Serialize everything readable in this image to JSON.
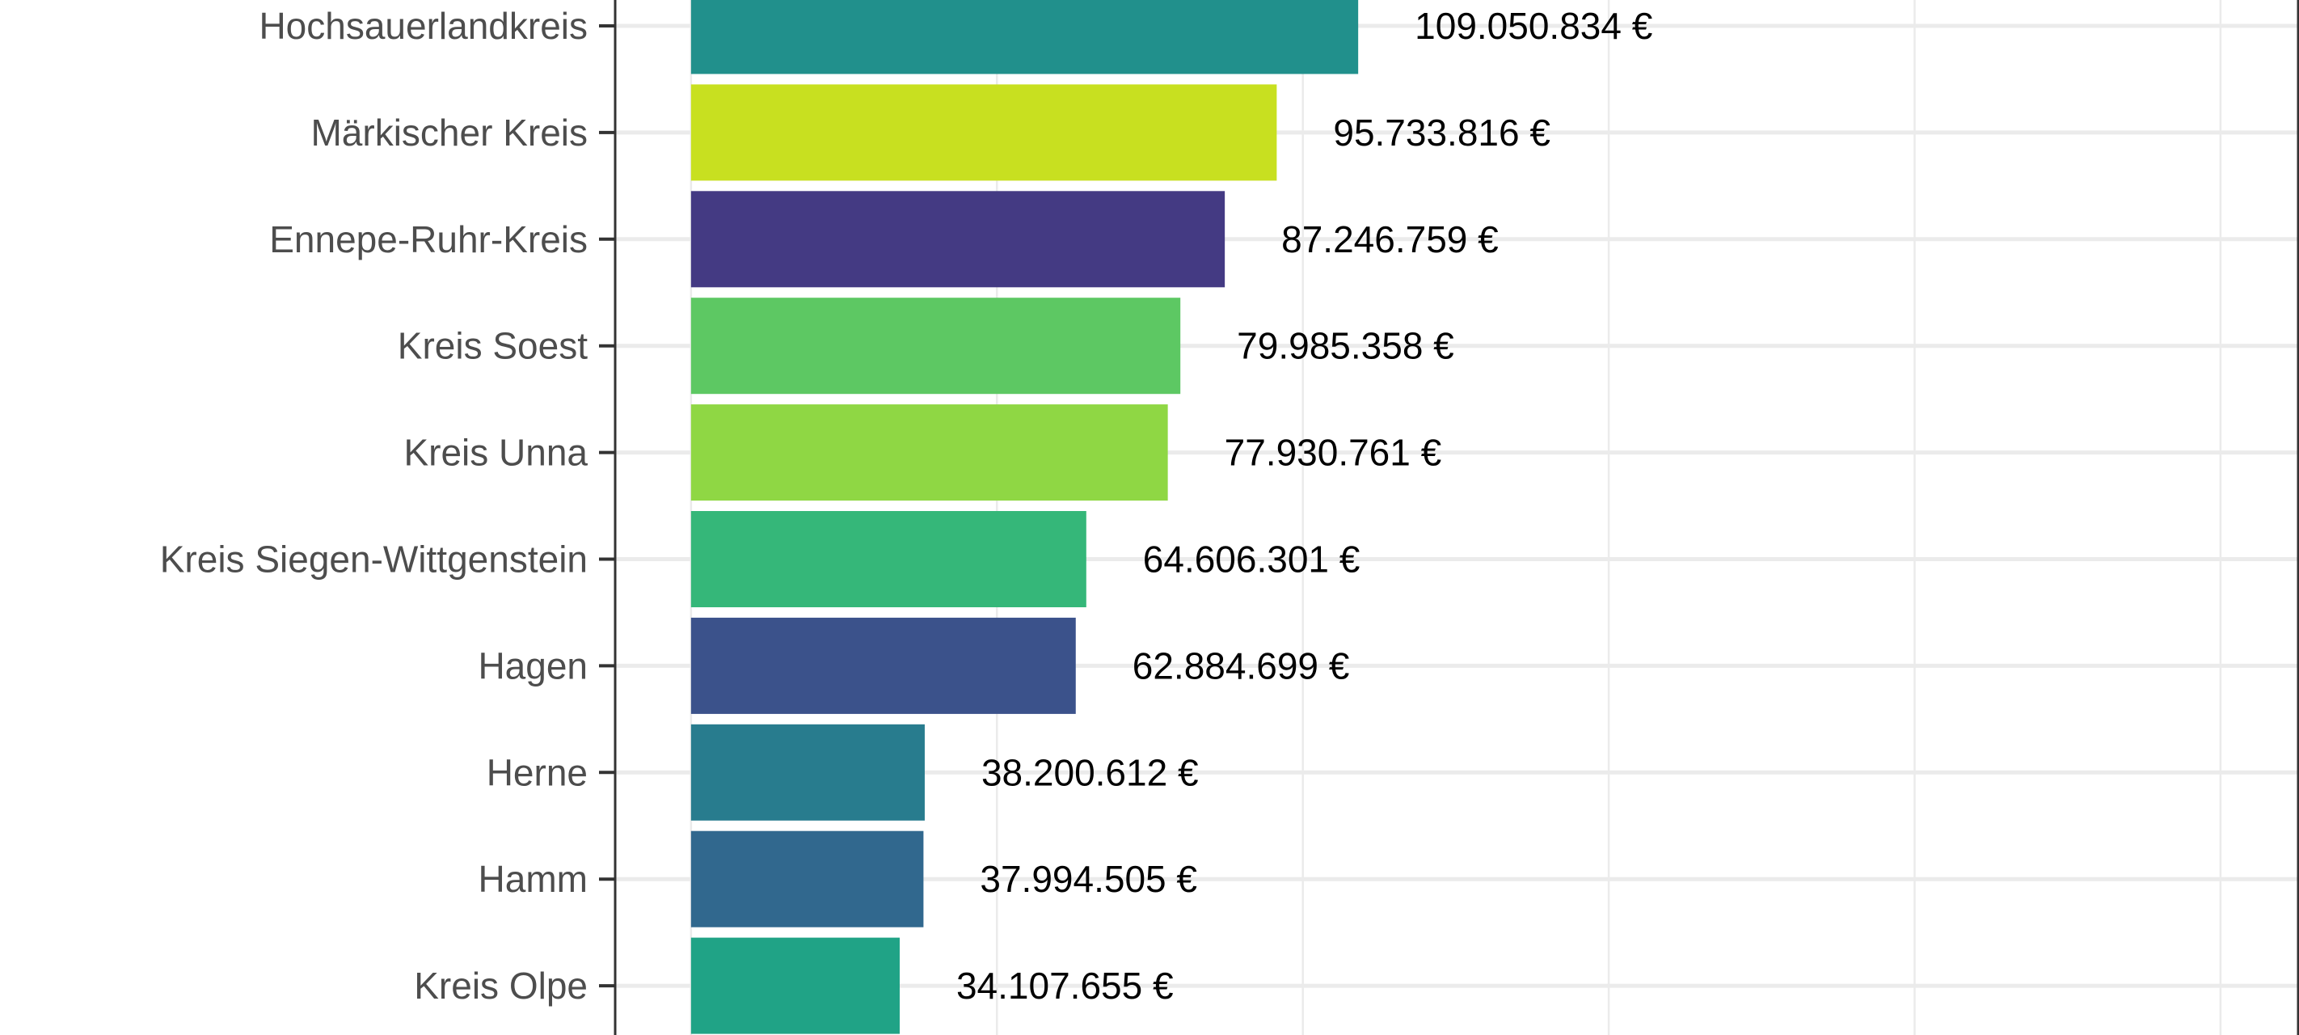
{
  "chart_data": {
    "type": "bar",
    "orientation": "horizontal",
    "categories": [
      "Hochsauerlandkreis",
      "Märkischer Kreis",
      "Ennepe-Ruhr-Kreis",
      "Kreis Soest",
      "Kreis Unna",
      "Kreis Siegen-Wittgenstein",
      "Hagen",
      "Herne",
      "Hamm",
      "Kreis Olpe"
    ],
    "values": [
      109050834,
      95733816,
      87246759,
      79985358,
      77930761,
      64606301,
      62884699,
      38200612,
      37994505,
      34107655
    ],
    "data_labels": [
      "109.050.834 €",
      "95.733.816 €",
      "87.246.759 €",
      "79.985.358 €",
      "77.930.761 €",
      "64.606.301 €",
      "62.884.699 €",
      "38.200.612 €",
      "37.994.505 €",
      "34.107.655 €"
    ],
    "colors": [
      "#21908C",
      "#C8E020",
      "#443A83",
      "#5DC863",
      "#8FD744",
      "#35B779",
      "#3B528B",
      "#287C8E",
      "#31688E",
      "#20A386"
    ],
    "xlim": [
      -12400000,
      262700000
    ],
    "x_gridlines": [
      0,
      50000000,
      100000000,
      150000000,
      200000000,
      250000000
    ],
    "grid": true,
    "legend": "none"
  }
}
